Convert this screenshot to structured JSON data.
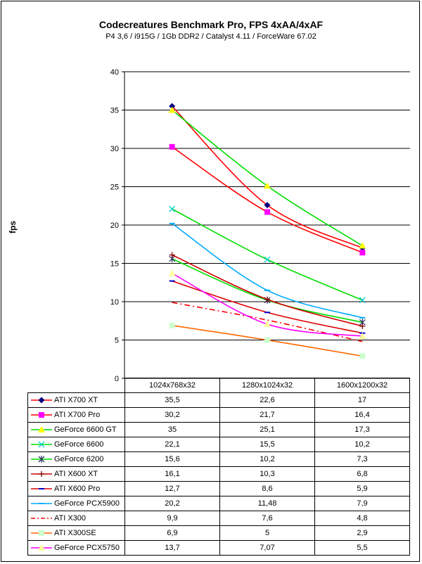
{
  "chart_data": {
    "type": "line",
    "title": "Codecreatures Benchmark Pro, FPS 4xAA/4xAF",
    "subtitle": "P4 3,6 / i915G / 1Gb DDR2 / Catalyst 4.11 / ForceWare 67.02",
    "ylabel": "fps",
    "xlabel": "",
    "ylim": [
      0,
      40
    ],
    "yticks": [
      "0",
      "5",
      "10",
      "15",
      "20",
      "25",
      "30",
      "35",
      "40"
    ],
    "categories": [
      "1024x768x32",
      "1280x1024x32",
      "1600x1200x32"
    ],
    "series": [
      {
        "name": "ATI X700 XT",
        "values": [
          35.5,
          22.6,
          17
        ],
        "labels": [
          "35,5",
          "22,6",
          "17"
        ],
        "color": "#ff0000",
        "marker": "diamond",
        "marker_color": "#000080",
        "dash": ""
      },
      {
        "name": "ATI X700 Pro",
        "values": [
          30.2,
          21.7,
          16.4
        ],
        "labels": [
          "30,2",
          "21,7",
          "16,4"
        ],
        "color": "#ff0000",
        "marker": "square",
        "marker_color": "#ff00ff",
        "dash": ""
      },
      {
        "name": "GeForce 6600 GT",
        "values": [
          35,
          25.1,
          17.3
        ],
        "labels": [
          "35",
          "25,1",
          "17,3"
        ],
        "color": "#00dd00",
        "marker": "triangle",
        "marker_color": "#ffff00",
        "dash": ""
      },
      {
        "name": "GeForce 6600",
        "values": [
          22.1,
          15.5,
          10.2
        ],
        "labels": [
          "22,1",
          "15,5",
          "10,2"
        ],
        "color": "#00dd00",
        "marker": "x",
        "marker_color": "#00cccc",
        "dash": ""
      },
      {
        "name": "GeForce 6200",
        "values": [
          15.6,
          10.2,
          7.3
        ],
        "labels": [
          "15,6",
          "10,2",
          "7,3"
        ],
        "color": "#00dd00",
        "marker": "star",
        "marker_color": "#333366",
        "dash": ""
      },
      {
        "name": "ATI X600 XT",
        "values": [
          16.1,
          10.3,
          6.8
        ],
        "labels": [
          "16,1",
          "10,3",
          "6,8"
        ],
        "color": "#cc0000",
        "marker": "plus",
        "marker_color": "#800000",
        "dash": ""
      },
      {
        "name": "ATI X600 Pro",
        "values": [
          12.7,
          8.6,
          5.9
        ],
        "labels": [
          "12,7",
          "8,6",
          "5,9"
        ],
        "color": "#dd0000",
        "marker": "dash",
        "marker_color": "#0000cc",
        "dash": ""
      },
      {
        "name": "GeForce PCX5900",
        "values": [
          20.2,
          11.48,
          7.9
        ],
        "labels": [
          "20,2",
          "11,48",
          "7,9"
        ],
        "color": "#00aaff",
        "marker": "dash",
        "marker_color": "#00aaff",
        "dash": ""
      },
      {
        "name": "ATI X300",
        "values": [
          9.9,
          7.6,
          4.8
        ],
        "labels": [
          "9,9",
          "7,6",
          "4,8"
        ],
        "color": "#ff0000",
        "marker": "none",
        "marker_color": "#ff0000",
        "dash": "8,4,2,4"
      },
      {
        "name": "ATI X300SE",
        "values": [
          6.9,
          5,
          2.9
        ],
        "labels": [
          "6,9",
          "5",
          "2,9"
        ],
        "color": "#ff6600",
        "marker": "square",
        "marker_color": "#ccffcc",
        "dash": ""
      },
      {
        "name": "GeForce PCX5750",
        "values": [
          13.7,
          7.07,
          5.5
        ],
        "labels": [
          "13,7",
          "7,07",
          "5,5"
        ],
        "color": "#ff00ff",
        "marker": "triangle",
        "marker_color": "#ffff99",
        "dash": ""
      }
    ]
  }
}
